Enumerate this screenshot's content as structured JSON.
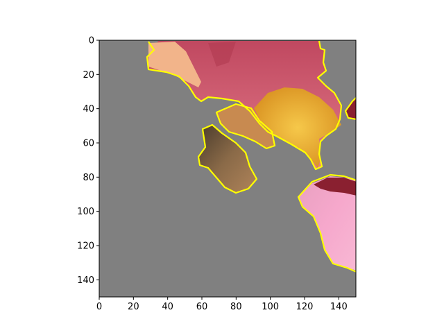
{
  "figure": {
    "background_color": "#808080",
    "segment_outline_color": "#ffff00",
    "x_ticks": [
      "0",
      "20",
      "40",
      "60",
      "80",
      "100",
      "120",
      "140"
    ],
    "y_ticks": [
      "0",
      "20",
      "40",
      "60",
      "80",
      "100",
      "120",
      "140"
    ],
    "x_range": [
      0,
      150
    ],
    "y_range": [
      150,
      0
    ],
    "segments": [
      {
        "name": "pink-red-petal-region",
        "color": "#d06070"
      },
      {
        "name": "peach-petal-region",
        "color": "#f2b48a"
      },
      {
        "name": "yellow-stamen-region",
        "color": "#e9b02e"
      },
      {
        "name": "brown-anther-region",
        "color": "#7a5a3a"
      },
      {
        "name": "pink-petal-region",
        "color": "#f09ac0"
      },
      {
        "name": "dark-red-petal-region",
        "color": "#8a2030"
      }
    ]
  }
}
